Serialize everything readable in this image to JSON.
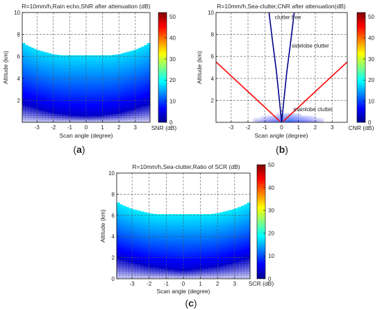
{
  "colors": {
    "jet_scale": [
      "#00008f",
      "#0000ff",
      "#0080ff",
      "#00ffff",
      "#80ff80",
      "#ffff00",
      "#ff8000",
      "#ff0000",
      "#800000"
    ],
    "sidelobe_line": "#ff0000",
    "clutter_free_line": "#00008b",
    "grid": "#555555",
    "frame": "#000000"
  },
  "chart_data": [
    {
      "type": "heatmap",
      "panel_label": "a",
      "title": "R=10mm/h,Rain echo,SNR after attenuation (dB)",
      "xlabel": "Scan angle (degree)",
      "ylabel": "Altitude (km)",
      "xlim": [
        -3.9,
        3.9
      ],
      "ylim": [
        0,
        10
      ],
      "x_ticks": [
        -3,
        -2,
        -1,
        0,
        1,
        2,
        3
      ],
      "y_ticks": [
        2,
        4,
        6,
        8,
        10
      ],
      "grid": true,
      "colorbar": {
        "label": "SNR (dB)",
        "min": 0,
        "max": 52,
        "ticks": [
          0,
          10,
          20,
          30,
          40,
          50
        ]
      },
      "field": {
        "description_of_shape": "echo top vs scan angle, value decreasing with altitude",
        "top_profile": {
          "angles": [
            -3.9,
            -3.6,
            -3,
            -2.5,
            -2,
            -1.5,
            -1,
            0,
            1,
            1.5,
            2,
            2.5,
            3,
            3.6,
            3.9
          ],
          "top_km": [
            7.3,
            7.0,
            6.6,
            6.4,
            6.2,
            6.1,
            6.1,
            6.1,
            6.1,
            6.1,
            6.2,
            6.4,
            6.6,
            7.0,
            7.3
          ]
        },
        "bottom_profile": {
          "angles": [
            -3.9,
            -3,
            -2,
            -1,
            0,
            1,
            2,
            3,
            3.9
          ],
          "bottom_km": [
            1.6,
            1.2,
            0.8,
            0.6,
            0.5,
            0.6,
            0.8,
            1.2,
            1.6
          ]
        },
        "value_at_top_db": 18,
        "value_at_bottom_db": 3
      }
    },
    {
      "type": "heatmap",
      "panel_label": "b",
      "title": "R=10mm/h,Sea-clutter,CNR after attenuation(dB)",
      "xlabel": "Scan angle (degree)",
      "ylabel": "Altitude (km)",
      "xlim": [
        -3.9,
        3.9
      ],
      "ylim": [
        0,
        10
      ],
      "x_ticks": [
        -3,
        -2,
        -1,
        0,
        1,
        2,
        3
      ],
      "y_ticks": [
        2,
        4,
        6,
        8,
        10
      ],
      "grid": true,
      "colorbar": {
        "label": "CNR (dB)",
        "min": 0,
        "max": 52,
        "ticks": [
          0,
          10,
          20,
          30,
          40,
          50
        ]
      },
      "annotations": [
        {
          "text": "clutter free",
          "x": -0.4,
          "y": 9.4
        },
        {
          "text": "sidelobe  clutter",
          "x": 0.6,
          "y": 6.8
        },
        {
          "text": "mainlobe clutter",
          "x": 0.7,
          "y": 1.0
        }
      ],
      "lines": [
        {
          "name": "sidelobe boundary left",
          "color": "#ff0000",
          "x": [
            -3.9,
            -0.1
          ],
          "y": [
            5.5,
            0.1
          ]
        },
        {
          "name": "sidelobe boundary right",
          "color": "#ff0000",
          "x": [
            0.1,
            3.9
          ],
          "y": [
            0.1,
            5.5
          ]
        },
        {
          "name": "clutter free boundary left",
          "color": "#00008b",
          "x": [
            -0.75,
            -0.55,
            -0.3,
            -0.1,
            0
          ],
          "y": [
            10,
            7.5,
            4.5,
            1.5,
            0
          ]
        },
        {
          "name": "clutter free boundary right",
          "color": "#00008b",
          "x": [
            0,
            0.1,
            0.3,
            0.55,
            0.75
          ],
          "y": [
            0,
            1.5,
            4.5,
            7.5,
            10
          ]
        }
      ],
      "mainlobe_blob": {
        "x_range": [
          -1.7,
          2.5
        ],
        "y_range": [
          0,
          0.8
        ],
        "value_db": 4
      }
    },
    {
      "type": "heatmap",
      "panel_label": "c",
      "title": "R=10mm/h,Sea-clutter,Ratio of SCR (dB)",
      "xlabel": "Scan angle (degree)",
      "ylabel": "Altitude (km)",
      "xlim": [
        -3.9,
        3.9
      ],
      "ylim": [
        0,
        10
      ],
      "x_ticks": [
        -3,
        -2,
        -1,
        0,
        1,
        2,
        3
      ],
      "y_ticks": [
        0,
        2,
        4,
        6,
        8,
        10
      ],
      "grid": true,
      "colorbar": {
        "label": "SCR (dB)",
        "min": 0,
        "max": 50,
        "ticks": [
          0,
          10,
          20,
          30,
          40,
          50
        ]
      },
      "field": {
        "description_of_shape": "echo top vs scan angle, value decreasing with altitude",
        "top_profile": {
          "angles": [
            -3.9,
            -3.6,
            -3,
            -2.5,
            -2,
            -1.5,
            -1,
            0,
            1,
            1.5,
            2,
            2.5,
            3,
            3.6,
            3.9
          ],
          "top_km": [
            7.3,
            7.0,
            6.6,
            6.4,
            6.2,
            6.1,
            6.1,
            6.1,
            6.1,
            6.1,
            6.2,
            6.4,
            6.6,
            7.0,
            7.3
          ]
        },
        "bottom_profile": {
          "angles": [
            -3.9,
            -3,
            -2,
            -1,
            0,
            1,
            2,
            3,
            3.9
          ],
          "bottom_km": [
            1.9,
            1.5,
            1.1,
            0.9,
            0.7,
            0.9,
            1.1,
            1.5,
            1.9
          ]
        },
        "value_at_top_db": 18,
        "value_at_bottom_db": 3
      }
    }
  ]
}
